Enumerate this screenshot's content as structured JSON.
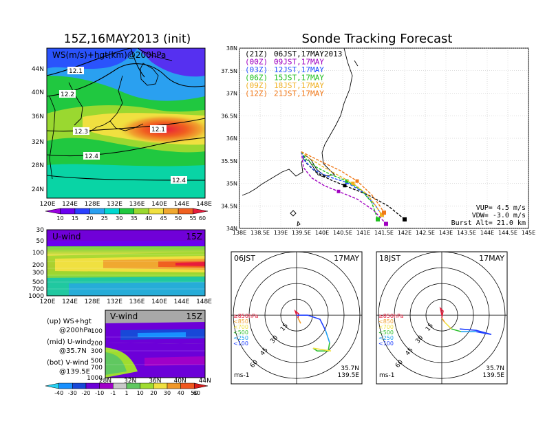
{
  "colors": {
    "wind_scale": [
      "#9a00e0",
      "#6a00f0",
      "#2a40ff",
      "#2aa0f0",
      "#00d8d0",
      "#20c840",
      "#9ad830",
      "#f0e040",
      "#f0a830",
      "#f06020",
      "#e81c3c"
    ],
    "diverging_scale": [
      "#28d0f0",
      "#1890ff",
      "#1848d8",
      "#6c00d8",
      "#a000c8",
      "#c8c8c8",
      "#60c860",
      "#a0dc30",
      "#f0e040",
      "#f09828",
      "#f05820",
      "#d81c1c"
    ],
    "tracks": [
      "#000000",
      "#a000c0",
      "#2050ff",
      "#20c020",
      "#f0b020",
      "#f07818"
    ]
  },
  "left_title": "15Z,16MAY2013 (init)",
  "right_title": "Sonde Tracking Forecast",
  "map_panel": {
    "label": "WS(m/s)+hgt(km)@200hPa",
    "lat_labels": [
      "44N",
      "40N",
      "36N",
      "32N",
      "28N",
      "24N"
    ],
    "lon_labels": [
      "120E",
      "124E",
      "128E",
      "132E",
      "136E",
      "140E",
      "144E",
      "148E"
    ],
    "contour_labels": [
      "12.1",
      "12.2",
      "12.3",
      "12.4",
      "12.1",
      "12.4"
    ]
  },
  "ws_colorbar": [
    "10",
    "15",
    "20",
    "25",
    "30",
    "35",
    "40",
    "45",
    "50",
    "55",
    "60"
  ],
  "u_panel": {
    "label": "U-wind",
    "time": "15Z",
    "p_labels": [
      "30",
      "50",
      "100",
      "200",
      "300",
      "500",
      "700",
      "1000"
    ],
    "lon_labels": [
      "120E",
      "124E",
      "128E",
      "132E",
      "136E",
      "140E",
      "144E",
      "148E"
    ]
  },
  "v_panel": {
    "label": "V-wind",
    "time": "15Z",
    "p_labels": [
      "100",
      "200",
      "300",
      "500",
      "700",
      "1000"
    ],
    "lat_labels": [
      "28N",
      "32N",
      "36N",
      "40N",
      "44N"
    ]
  },
  "legend_notes": [
    {
      "top": "(up) WS+hgt",
      "bottom": "@200hPa"
    },
    {
      "top": "(mid) U-wind",
      "bottom": "@35.7N"
    },
    {
      "top": "(bot) V-wind",
      "bottom": "@139.5E"
    }
  ],
  "uv_colorbar": [
    "-40",
    "-30",
    "-20",
    "-10",
    "-1",
    "1",
    "10",
    "20",
    "30",
    "40",
    "50",
    "60"
  ],
  "track_panel": {
    "lat_labels": [
      "38N",
      "37.5N",
      "37N",
      "36.5N",
      "36N",
      "35.5N",
      "35N",
      "34.5N",
      "34N"
    ],
    "lon_labels": [
      "138E",
      "138.5E",
      "139E",
      "139.5E",
      "140E",
      "140.5E",
      "141E",
      "141.5E",
      "142E",
      "142.5E",
      "143E",
      "143.5E",
      "144E",
      "144.5E",
      "145E"
    ],
    "legend": [
      {
        "code": "(21Z)",
        "text": "06JST,17MAY2013"
      },
      {
        "code": "(00Z)",
        "text": "09JST,17MAY"
      },
      {
        "code": "(03Z)",
        "text": "12JST,17MAY"
      },
      {
        "code": "(06Z)",
        "text": "15JST,17MAY"
      },
      {
        "code": "(09Z)",
        "text": "18JST,17MAY"
      },
      {
        "code": "(12Z)",
        "text": "21JST,17MAY"
      }
    ],
    "params": [
      "VUP= 4.5 m/s",
      "VDW= -3.0 m/s",
      "Burst Alt= 21.0 km"
    ]
  },
  "hodographs": [
    {
      "time": "06JST",
      "date": "17MAY",
      "lat": "35.7N",
      "lon": "139.5E",
      "unit": "ms-1"
    },
    {
      "time": "18JST",
      "date": "17MAY",
      "lat": "35.7N",
      "lon": "139.5E",
      "unit": "ms-1"
    }
  ],
  "hodo_ring_labels": [
    "15",
    "30",
    "45",
    "60"
  ],
  "hodo_legend": [
    "≥850hPa",
    "<850",
    "<700",
    "<500",
    "<250",
    "<100"
  ],
  "chart_data": {
    "type": "line",
    "title": "Sonde Tracking Forecast",
    "x_unit": "degrees E",
    "y_unit": "degrees N",
    "xlim": [
      138,
      145
    ],
    "ylim": [
      34,
      38
    ],
    "launch": {
      "lon": 139.5,
      "lat": 35.7
    },
    "series": [
      {
        "name": "06JST,17MAY2013",
        "points": [
          [
            139.5,
            35.7
          ],
          [
            139.62,
            35.45
          ],
          [
            139.85,
            35.25
          ],
          [
            140.2,
            35.08
          ],
          [
            140.55,
            34.95
          ],
          [
            141.1,
            34.75
          ],
          [
            141.6,
            34.5
          ],
          [
            142.0,
            34.2
          ]
        ]
      },
      {
        "name": "09JST,17MAY",
        "points": [
          [
            139.5,
            35.7
          ],
          [
            139.55,
            35.35
          ],
          [
            139.75,
            35.12
          ],
          [
            140.05,
            34.95
          ],
          [
            140.4,
            34.82
          ],
          [
            140.85,
            34.65
          ],
          [
            141.25,
            34.4
          ],
          [
            141.55,
            34.1
          ]
        ]
      },
      {
        "name": "12JST,17MAY",
        "points": [
          [
            139.5,
            35.7
          ],
          [
            139.58,
            35.5
          ],
          [
            139.8,
            35.3
          ],
          [
            140.15,
            35.15
          ],
          [
            140.6,
            35.02
          ],
          [
            141.0,
            34.8
          ],
          [
            141.3,
            34.5
          ],
          [
            141.45,
            34.3
          ]
        ]
      },
      {
        "name": "15JST,17MAY",
        "points": [
          [
            139.5,
            35.7
          ],
          [
            139.63,
            35.52
          ],
          [
            139.88,
            35.35
          ],
          [
            140.2,
            35.2
          ],
          [
            140.6,
            35.05
          ],
          [
            140.95,
            34.85
          ],
          [
            141.2,
            34.58
          ],
          [
            141.35,
            34.2
          ]
        ]
      },
      {
        "name": "18JST,17MAY",
        "points": [
          [
            139.5,
            35.7
          ],
          [
            139.7,
            35.55
          ],
          [
            140.0,
            35.38
          ],
          [
            140.35,
            35.2
          ],
          [
            140.75,
            35.0
          ],
          [
            141.1,
            34.75
          ],
          [
            141.3,
            34.5
          ],
          [
            141.45,
            34.3
          ]
        ]
      },
      {
        "name": "21JST,17MAY",
        "points": [
          [
            139.5,
            35.7
          ],
          [
            139.72,
            35.6
          ],
          [
            140.05,
            35.45
          ],
          [
            140.45,
            35.28
          ],
          [
            140.85,
            35.05
          ],
          [
            141.2,
            34.75
          ],
          [
            141.4,
            34.5
          ],
          [
            141.5,
            34.35
          ]
        ]
      }
    ]
  }
}
